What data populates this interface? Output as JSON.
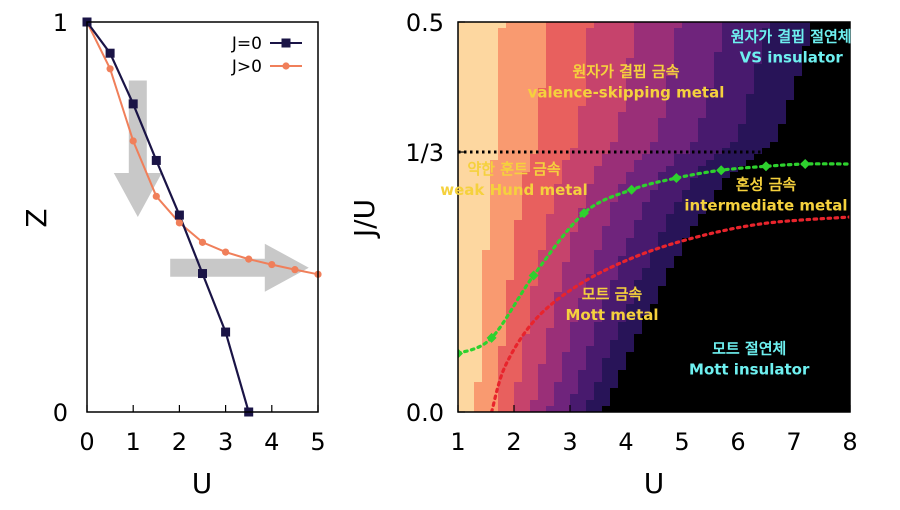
{
  "chart_data": [
    {
      "type": "line",
      "xlabel": "U",
      "ylabel": "Z",
      "xlim": [
        0,
        5
      ],
      "ylim": [
        0,
        1
      ],
      "xticks": [
        "0",
        "1",
        "2",
        "3",
        "4",
        "5"
      ],
      "yticks": [
        "0",
        "1"
      ],
      "legend": "top-right",
      "series": [
        {
          "name": "J=0",
          "color": "#1a1446",
          "marker": "square",
          "x": [
            0,
            0.5,
            1.0,
            1.5,
            2.0,
            2.5,
            3.0,
            3.5
          ],
          "y": [
            1.0,
            0.92,
            0.79,
            0.645,
            0.505,
            0.355,
            0.205,
            0.0
          ]
        },
        {
          "name": "J>0",
          "color": "#f07f5a",
          "marker": "circle",
          "x": [
            0,
            0.5,
            1.0,
            1.5,
            2.0,
            2.5,
            3.0,
            3.5,
            4.0,
            4.5,
            5.0
          ],
          "y": [
            1.0,
            0.88,
            0.695,
            0.553,
            0.485,
            0.435,
            0.41,
            0.392,
            0.378,
            0.365,
            0.353
          ]
        }
      ],
      "arrows": [
        {
          "from": [
            1.1,
            0.85
          ],
          "to": [
            1.1,
            0.5
          ],
          "color": "#c8c8c8"
        },
        {
          "from": [
            1.8,
            0.37
          ],
          "to": [
            4.8,
            0.37
          ],
          "color": "#c8c8c8"
        }
      ]
    },
    {
      "type": "heatmap",
      "xlabel": "U",
      "ylabel": "J/U",
      "xlim": [
        1,
        8
      ],
      "ylim": [
        0,
        0.5
      ],
      "xticks": [
        "1",
        "2",
        "3",
        "4",
        "5",
        "6",
        "7",
        "8"
      ],
      "yticks": [
        {
          "value": 0.0,
          "label": "0.0"
        },
        {
          "value": 0.3333,
          "label": "1/3"
        },
        {
          "value": 0.5,
          "label": "0.5"
        }
      ],
      "colormap": [
        "#fdd7a0",
        "#f99a70",
        "#e8605e",
        "#c6436c",
        "#9a2f78",
        "#6f247c",
        "#481a6e",
        "#281458",
        "#000000"
      ],
      "reference_line": {
        "y": 0.3333,
        "style": "dotted",
        "color": "#000000"
      },
      "boundaries": [
        {
          "color": "#2ed12e",
          "style": "dotted",
          "marker": "diamond",
          "points": [
            [
              1.0,
              0.075
            ],
            [
              1.6,
              0.095
            ],
            [
              2.35,
              0.175
            ],
            [
              3.25,
              0.255
            ],
            [
              4.1,
              0.285
            ],
            [
              4.9,
              0.3
            ],
            [
              5.7,
              0.31
            ],
            [
              6.5,
              0.315
            ],
            [
              7.2,
              0.318
            ]
          ],
          "curve_end": [
            8.0,
            0.318
          ]
        },
        {
          "color": "#e8242c",
          "style": "dotted",
          "points": [
            [
              1.6,
              0.0
            ],
            [
              1.85,
              0.06
            ],
            [
              2.4,
              0.12
            ],
            [
              3.2,
              0.165
            ],
            [
              4.2,
              0.2
            ],
            [
              5.3,
              0.225
            ],
            [
              6.5,
              0.242
            ],
            [
              8.0,
              0.25
            ]
          ]
        }
      ],
      "regions": [
        {
          "ko": "원자가 결핍 금속",
          "en": "valence-skipping metal",
          "color": "yellow",
          "at": [
            4.0,
            0.43
          ]
        },
        {
          "ko": "원자가 결핍 절연체",
          "en": "VS insulator",
          "color": "cyan",
          "at": [
            6.95,
            0.475
          ]
        },
        {
          "ko": "약한 훈트 금속",
          "en": "weak Hund metal",
          "color": "yellow",
          "at": [
            2.0,
            0.305
          ]
        },
        {
          "ko": "혼성 금속",
          "en": "intermediate metal",
          "color": "yellow",
          "at": [
            6.5,
            0.285
          ]
        },
        {
          "ko": "모트 금속",
          "en": "Mott metal",
          "color": "yellow",
          "at": [
            3.75,
            0.145
          ]
        },
        {
          "ko": "모트 절연체",
          "en": "Mott insulator",
          "color": "cyan",
          "at": [
            6.2,
            0.075
          ]
        }
      ]
    }
  ]
}
